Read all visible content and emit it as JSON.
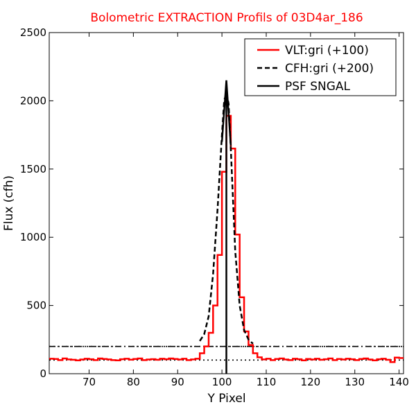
{
  "chart_data": {
    "type": "line",
    "title": "Bolometric EXTRACTION Profils of 03D4ar_186",
    "title_color": "#ff0000",
    "xlabel": "Y Pixel",
    "ylabel": "Flux (cfh)",
    "xlim": [
      61,
      141
    ],
    "ylim": [
      0,
      2500
    ],
    "x_ticks": [
      70,
      80,
      90,
      100,
      110,
      120,
      130,
      140
    ],
    "y_ticks": [
      0,
      500,
      1000,
      1500,
      2000,
      2500
    ],
    "grid": false,
    "legend_position": "top-right",
    "series": [
      {
        "name": "VLT:gri (+100)",
        "style": "steps",
        "color": "#ff0000",
        "x": [
          61,
          62,
          63,
          64,
          65,
          66,
          67,
          68,
          69,
          70,
          71,
          72,
          73,
          74,
          75,
          76,
          77,
          78,
          79,
          80,
          81,
          82,
          83,
          84,
          85,
          86,
          87,
          88,
          89,
          90,
          91,
          92,
          93,
          94,
          95,
          96,
          97,
          98,
          99,
          100,
          101,
          102,
          103,
          104,
          105,
          106,
          107,
          108,
          109,
          110,
          111,
          112,
          113,
          114,
          115,
          116,
          117,
          118,
          119,
          120,
          121,
          122,
          123,
          124,
          125,
          126,
          127,
          128,
          129,
          130,
          131,
          132,
          133,
          134,
          135,
          136,
          137,
          138,
          139,
          140
        ],
        "y": [
          110,
          108,
          100,
          112,
          105,
          102,
          98,
          104,
          110,
          106,
          100,
          112,
          108,
          105,
          100,
          98,
          106,
          110,
          103,
          108,
          112,
          100,
          104,
          107,
          102,
          110,
          106,
          112,
          108,
          104,
          110,
          100,
          105,
          110,
          150,
          200,
          300,
          500,
          870,
          1480,
          1890,
          1650,
          1020,
          560,
          310,
          210,
          150,
          120,
          105,
          110,
          100,
          108,
          112,
          104,
          100,
          110,
          106,
          98,
          108,
          104,
          110,
          102,
          106,
          112,
          100,
          108,
          104,
          110,
          106,
          100,
          108,
          112,
          104,
          98,
          106,
          110,
          102,
          85,
          118,
          115
        ]
      },
      {
        "name": "CFH:gri (+200)",
        "style": "dashed",
        "color": "#000000",
        "x": [
          95,
          96,
          97,
          98,
          99,
          100,
          100.5,
          101,
          101.5,
          102,
          103,
          104,
          105,
          106,
          107
        ],
        "y": [
          240,
          290,
          420,
          730,
          1200,
          1750,
          2000,
          2060,
          1980,
          1650,
          900,
          500,
          320,
          250,
          220
        ]
      },
      {
        "name": "PSF SNGAL",
        "style": "solid",
        "color": "#000000",
        "x": [
          101,
          101,
          101,
          100,
          101,
          102
        ],
        "y": [
          0,
          2150,
          2150,
          1700,
          2150,
          1670
        ]
      }
    ],
    "reference_lines": [
      {
        "y": 100,
        "style": "dotted",
        "color": "#000000"
      },
      {
        "y": 200,
        "style": "dotted",
        "color": "#000000"
      }
    ],
    "baselines": [
      {
        "y": 200,
        "style": "dashdot",
        "color": "#000000"
      }
    ]
  }
}
